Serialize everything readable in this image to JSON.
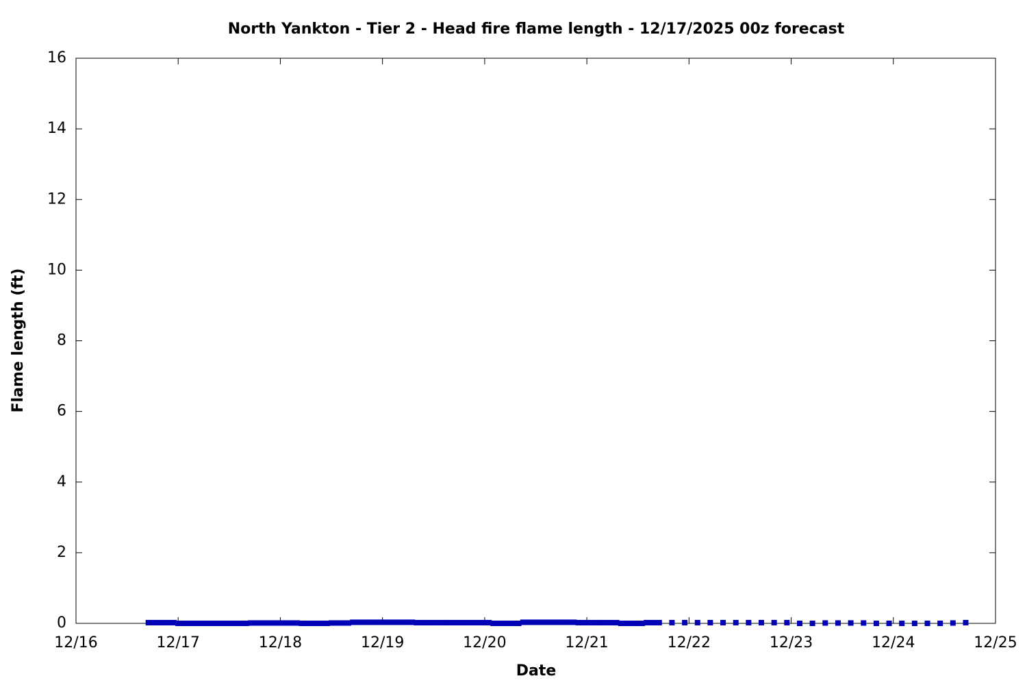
{
  "chart_data": {
    "type": "scatter",
    "title": "North Yankton - Tier 2 - Head fire flame length - 12/17/2025 00z forecast",
    "x_label": "Date",
    "y_label": "Flame length (ft)",
    "xlim": [
      0,
      216
    ],
    "xticks": [
      {
        "value": 0,
        "label": "12/16"
      },
      {
        "value": 24,
        "label": "12/17"
      },
      {
        "value": 48,
        "label": "12/18"
      },
      {
        "value": 72,
        "label": "12/19"
      },
      {
        "value": 96,
        "label": "12/20"
      },
      {
        "value": 120,
        "label": "12/21"
      },
      {
        "value": 144,
        "label": "12/22"
      },
      {
        "value": 168,
        "label": "12/23"
      },
      {
        "value": 192,
        "label": "12/24"
      },
      {
        "value": 216,
        "label": "12/25"
      }
    ],
    "ylim": [
      0,
      16
    ],
    "yticks": [
      0,
      2,
      4,
      6,
      8,
      10,
      12,
      14,
      16
    ],
    "color": "#0000b4",
    "x": [
      17,
      18,
      19,
      20,
      21,
      22,
      23,
      24,
      25,
      26,
      27,
      28,
      29,
      30,
      31,
      32,
      33,
      34,
      35,
      36,
      37,
      38,
      39,
      40,
      41,
      42,
      43,
      44,
      45,
      46,
      47,
      48,
      49,
      50,
      51,
      52,
      53,
      54,
      55,
      56,
      57,
      58,
      59,
      60,
      61,
      62,
      63,
      64,
      65,
      66,
      67,
      68,
      69,
      70,
      71,
      72,
      73,
      74,
      75,
      76,
      77,
      78,
      79,
      80,
      81,
      82,
      83,
      84,
      85,
      86,
      87,
      88,
      89,
      90,
      91,
      92,
      93,
      94,
      95,
      96,
      97,
      98,
      99,
      100,
      101,
      102,
      103,
      104,
      105,
      106,
      107,
      108,
      109,
      110,
      111,
      112,
      113,
      114,
      115,
      116,
      117,
      118,
      119,
      120,
      121,
      122,
      123,
      124,
      125,
      126,
      127,
      128,
      129,
      130,
      131,
      132,
      133,
      134,
      135,
      136,
      137,
      140,
      143,
      146,
      149,
      152,
      155,
      158,
      161,
      164,
      167,
      170,
      173,
      176,
      179,
      182,
      185,
      188,
      191,
      194,
      197,
      200,
      203,
      206,
      209
    ],
    "values": [
      0.02,
      0.02,
      0.02,
      0.02,
      0.02,
      0.02,
      0.02,
      0,
      0,
      0,
      0,
      0,
      0,
      0,
      0,
      0,
      0,
      0,
      0,
      0,
      0,
      0,
      0,
      0,
      0.01,
      0.01,
      0.01,
      0.01,
      0.01,
      0.01,
      0.01,
      0.01,
      0.01,
      0.01,
      0.01,
      0.01,
      0,
      0,
      0,
      0,
      0,
      0,
      0,
      0.01,
      0.01,
      0.01,
      0.01,
      0.01,
      0.03,
      0.03,
      0.03,
      0.03,
      0.03,
      0.03,
      0.03,
      0.03,
      0.03,
      0.03,
      0.03,
      0.03,
      0.03,
      0.03,
      0.03,
      0.02,
      0.02,
      0.02,
      0.02,
      0.02,
      0.02,
      0.02,
      0.02,
      0.02,
      0.02,
      0.02,
      0.02,
      0.02,
      0.02,
      0.02,
      0.02,
      0.02,
      0.02,
      0,
      0,
      0,
      0,
      0,
      0,
      0,
      0.03,
      0.03,
      0.03,
      0.03,
      0.03,
      0.03,
      0.03,
      0.03,
      0.03,
      0.03,
      0.03,
      0.03,
      0.03,
      0.02,
      0.02,
      0.02,
      0.02,
      0.02,
      0.02,
      0.02,
      0.02,
      0.02,
      0.02,
      0,
      0,
      0,
      0,
      0,
      0,
      0.02,
      0.02,
      0.02,
      0.02,
      0.02,
      0.02,
      0.02,
      0.02,
      0.02,
      0.02,
      0.02,
      0.02,
      0.02,
      0.02,
      0,
      0,
      0.01,
      0.01,
      0.01,
      0.01,
      0,
      0,
      0,
      0,
      0,
      0,
      0.01,
      0.02
    ]
  }
}
